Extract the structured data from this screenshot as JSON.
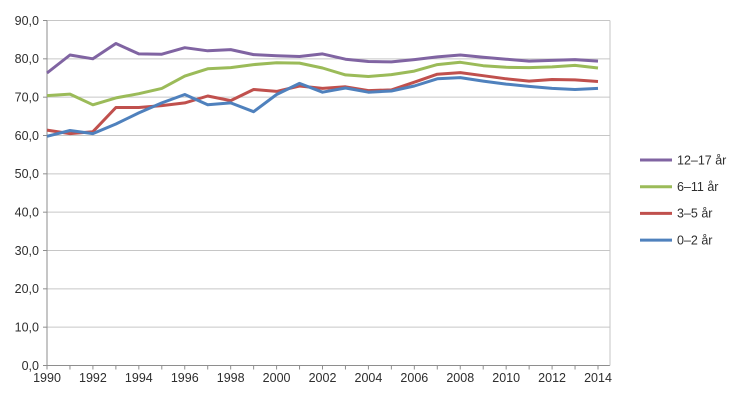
{
  "chart_data": {
    "type": "line",
    "title": "",
    "xlabel": "",
    "ylabel": "",
    "x": [
      1990,
      1991,
      1992,
      1993,
      1994,
      1995,
      1996,
      1997,
      1998,
      1999,
      2000,
      2001,
      2002,
      2003,
      2004,
      2005,
      2006,
      2007,
      2008,
      2009,
      2010,
      2011,
      2012,
      2013,
      2014
    ],
    "series": [
      {
        "name": "12–17 år",
        "color": "#8064A2",
        "values": [
          76.3,
          81.0,
          80.0,
          84.0,
          81.3,
          81.2,
          82.9,
          82.1,
          82.4,
          81.1,
          80.8,
          80.6,
          81.3,
          79.9,
          79.3,
          79.2,
          79.8,
          80.5,
          81.0,
          80.4,
          79.9,
          79.4,
          79.6,
          79.8,
          79.4
        ]
      },
      {
        "name": "6–11 år",
        "color": "#9BBB59",
        "values": [
          70.4,
          70.8,
          68.0,
          69.8,
          70.9,
          72.3,
          75.5,
          77.4,
          77.7,
          78.5,
          79.0,
          78.9,
          77.6,
          75.8,
          75.4,
          75.9,
          76.8,
          78.5,
          79.1,
          78.2,
          77.8,
          77.7,
          77.9,
          78.3,
          77.6
        ]
      },
      {
        "name": "3–5 år",
        "color": "#C0504D",
        "values": [
          61.4,
          60.5,
          61.0,
          67.3,
          67.3,
          67.8,
          68.5,
          70.3,
          69.1,
          72.0,
          71.5,
          72.9,
          72.3,
          72.7,
          71.7,
          71.9,
          73.9,
          76.0,
          76.4,
          75.6,
          74.8,
          74.2,
          74.6,
          74.5,
          74.1
        ]
      },
      {
        "name": "0–2 år",
        "color": "#4F81BD",
        "values": [
          59.8,
          61.3,
          60.5,
          63.0,
          65.9,
          68.5,
          70.7,
          68.0,
          68.5,
          66.2,
          70.7,
          73.6,
          71.3,
          72.4,
          71.3,
          71.6,
          72.9,
          74.8,
          75.1,
          74.2,
          73.4,
          72.8,
          72.3,
          72.0,
          72.3
        ]
      }
    ],
    "ylim": [
      0,
      90
    ],
    "y_tick_labels": [
      "0,0",
      "10,0",
      "20,0",
      "30,0",
      "40,0",
      "50,0",
      "60,0",
      "70,0",
      "80,0",
      "90,0"
    ],
    "x_tick_labels": [
      "1990",
      "1992",
      "1994",
      "1996",
      "1998",
      "2000",
      "2002",
      "2004",
      "2006",
      "2008",
      "2010",
      "2012",
      "2014"
    ],
    "x_label_every": 2,
    "grid": true,
    "legend_position": "right",
    "colors": {
      "gridline": "#C6C6C6",
      "axis": "#8E8E8E",
      "tick_text": "#2E2E2E"
    }
  }
}
